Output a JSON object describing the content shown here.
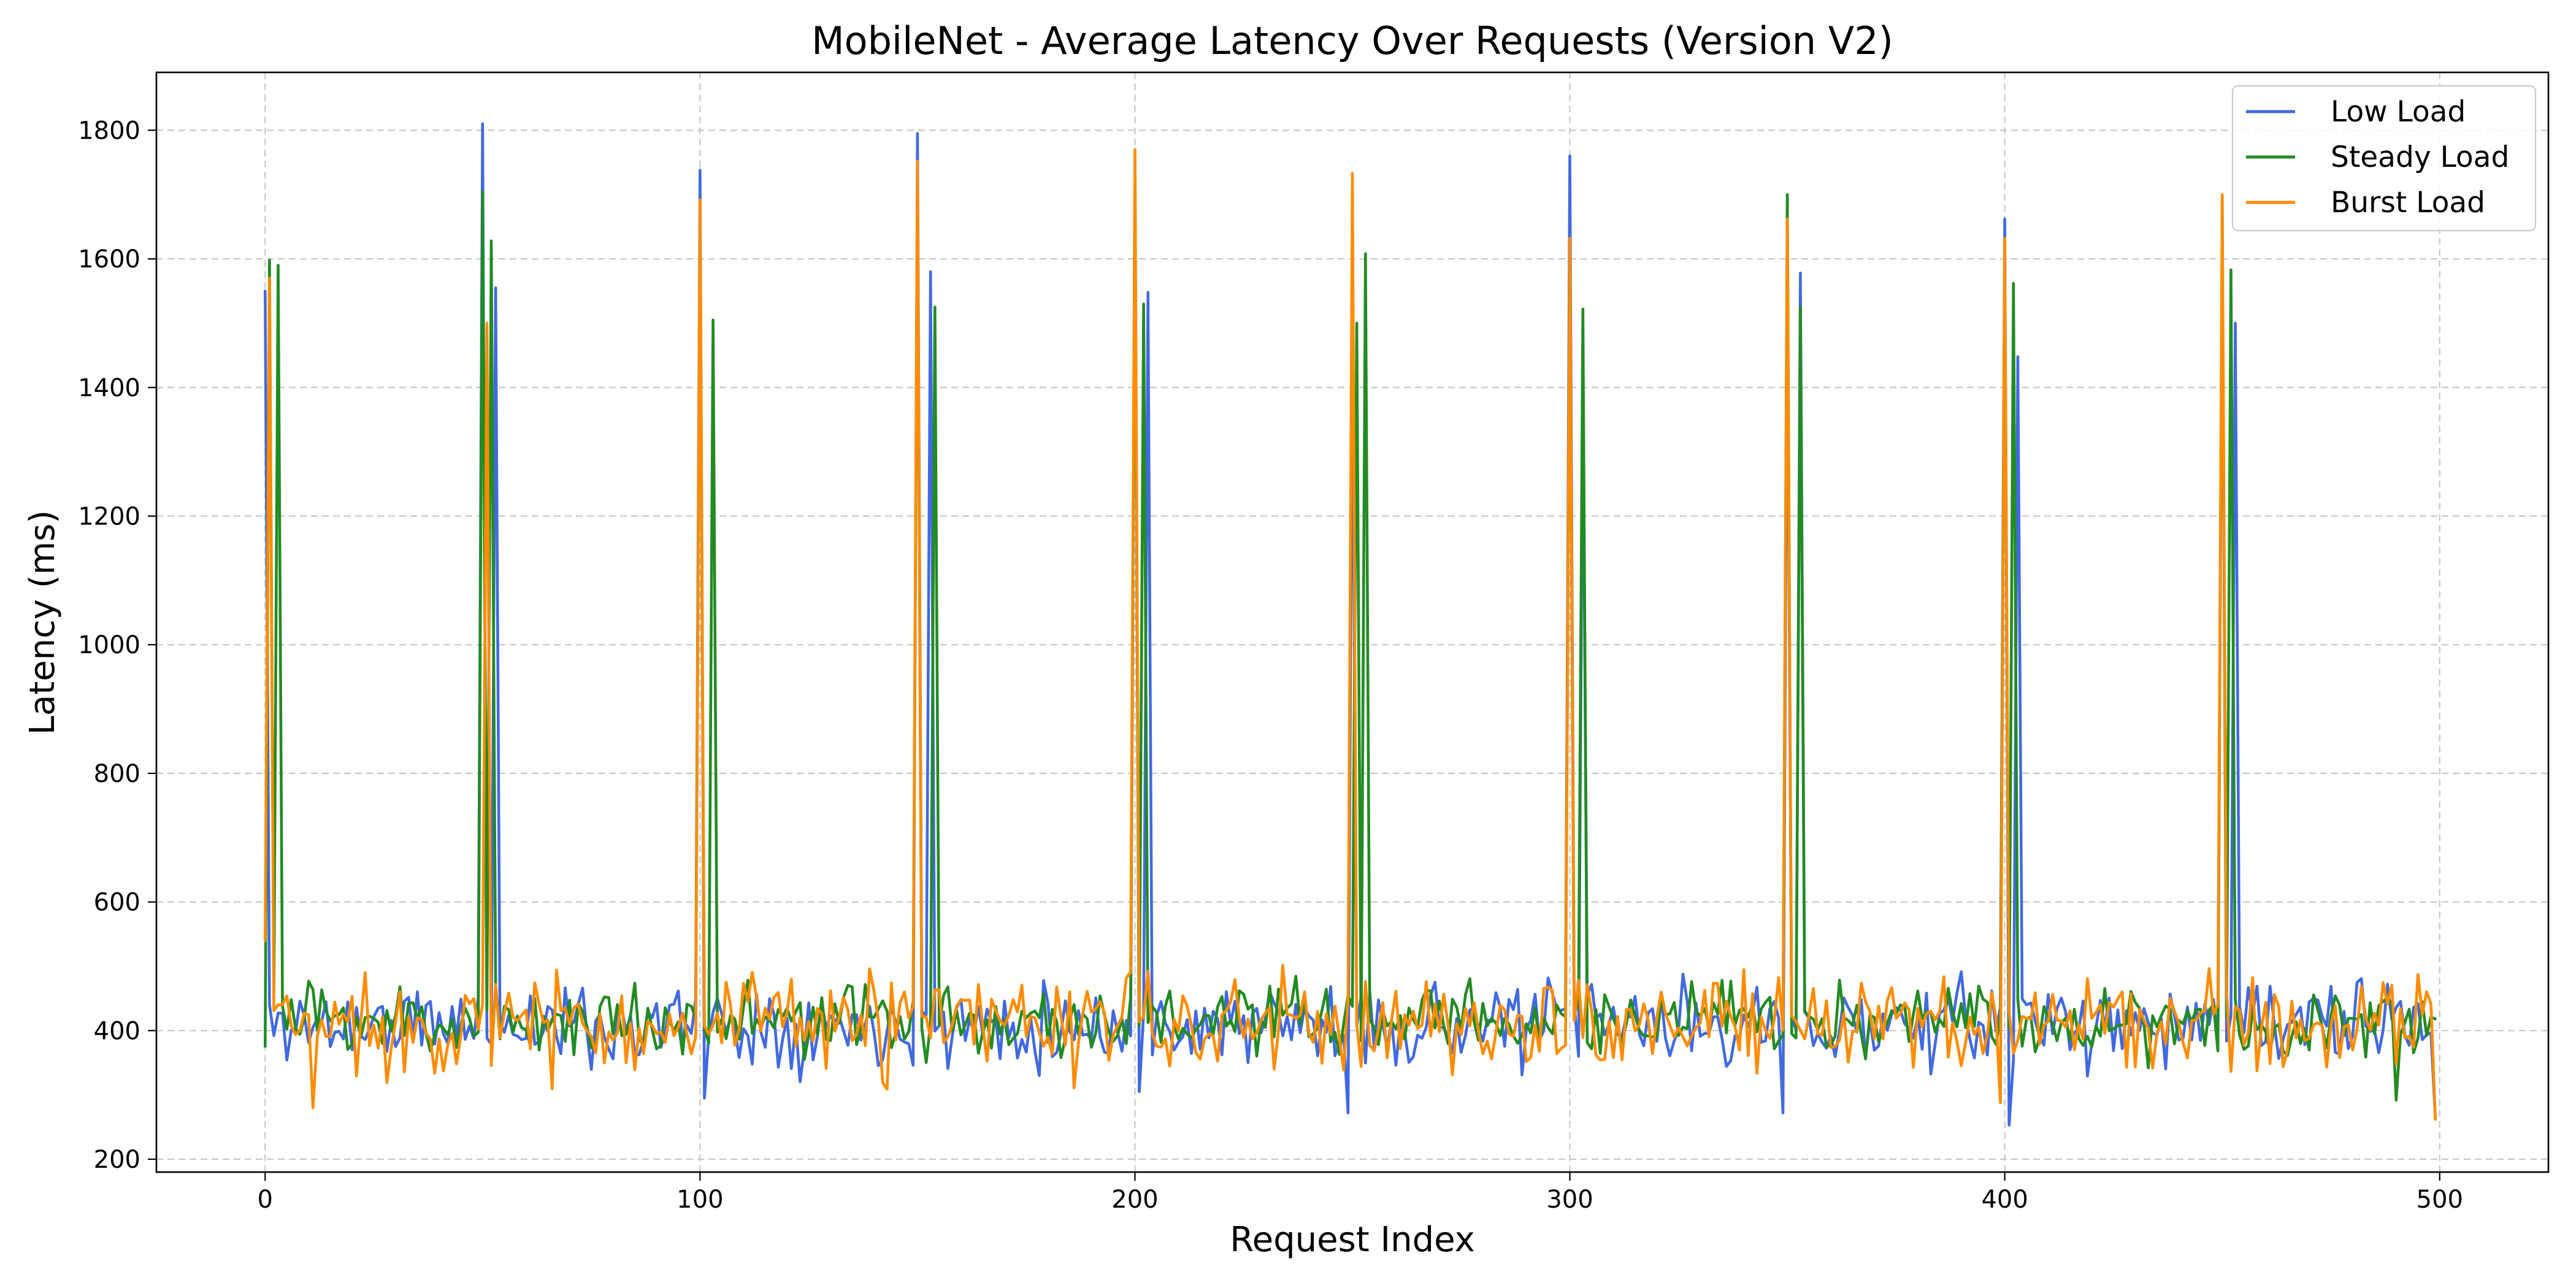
{
  "chart_data": {
    "type": "line",
    "title": "MobileNet - Average Latency Over Requests (Version V2)",
    "xlabel": "Request Index",
    "ylabel": "Latency (ms)",
    "xlim": [
      -25,
      525
    ],
    "ylim": [
      180,
      1890
    ],
    "x_ticks": [
      0,
      100,
      200,
      300,
      400,
      500
    ],
    "y_ticks": [
      200,
      400,
      600,
      800,
      1000,
      1200,
      1400,
      1600,
      1800
    ],
    "grid": true,
    "legend": {
      "placement": "top-right",
      "entries": [
        "Low Load",
        "Steady Load",
        "Burst Load"
      ]
    },
    "x": {
      "start": 0,
      "step": 1,
      "count": 500
    },
    "series": [
      {
        "name": "Low Load",
        "color": "#4169e1",
        "baseline": 410,
        "noise": 45,
        "seed": 11,
        "spikes": [
          [
            0,
            1550
          ],
          [
            50,
            1810
          ],
          [
            53,
            1555
          ],
          [
            100,
            1738
          ],
          [
            150,
            1795
          ],
          [
            153,
            1580
          ],
          [
            200,
            1750
          ],
          [
            203,
            1548
          ],
          [
            250,
            1480
          ],
          [
            300,
            1760
          ],
          [
            303,
            1400
          ],
          [
            350,
            1550
          ],
          [
            353,
            1578
          ],
          [
            400,
            1662
          ],
          [
            403,
            1448
          ],
          [
            450,
            1640
          ],
          [
            453,
            1500
          ]
        ],
        "dips": [
          [
            101,
            295
          ],
          [
            201,
            305
          ],
          [
            249,
            272
          ],
          [
            349,
            272
          ],
          [
            401,
            253
          ],
          [
            499,
            265
          ]
        ]
      },
      {
        "name": "Steady Load",
        "color": "#228b22",
        "baseline": 415,
        "noise": 40,
        "seed": 23,
        "spikes": [
          [
            1,
            1598
          ],
          [
            3,
            1590
          ],
          [
            50,
            1705
          ],
          [
            52,
            1628
          ],
          [
            100,
            1650
          ],
          [
            103,
            1505
          ],
          [
            150,
            1700
          ],
          [
            154,
            1525
          ],
          [
            200,
            1700
          ],
          [
            202,
            1530
          ],
          [
            251,
            1500
          ],
          [
            253,
            1608
          ],
          [
            300,
            1600
          ],
          [
            303,
            1522
          ],
          [
            350,
            1700
          ],
          [
            353,
            1525
          ],
          [
            400,
            1600
          ],
          [
            402,
            1562
          ],
          [
            450,
            1690
          ],
          [
            452,
            1583
          ]
        ],
        "dips": [
          [
            490,
            292
          ]
        ]
      },
      {
        "name": "Burst Load",
        "color": "#ff8c00",
        "baseline": 410,
        "noise": 55,
        "seed": 37,
        "spikes": [
          [
            1,
            1570
          ],
          [
            51,
            1500
          ],
          [
            100,
            1692
          ],
          [
            150,
            1752
          ],
          [
            200,
            1770
          ],
          [
            250,
            1733
          ],
          [
            300,
            1632
          ],
          [
            350,
            1662
          ],
          [
            400,
            1632
          ],
          [
            450,
            1700
          ]
        ],
        "dips": [
          [
            0,
            540
          ],
          [
            11,
            280
          ],
          [
            399,
            288
          ],
          [
            499,
            262
          ]
        ]
      }
    ]
  }
}
